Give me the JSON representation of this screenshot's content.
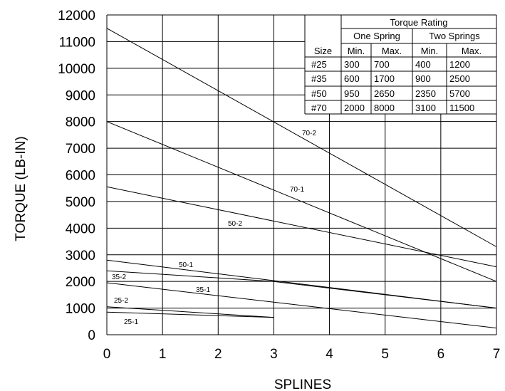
{
  "chart_data": {
    "type": "line",
    "title": "",
    "xlabel": "SPLINES",
    "ylabel": "TORQUE (LB-IN)",
    "xlim": [
      0,
      7
    ],
    "ylim": [
      0,
      12000
    ],
    "grid": true,
    "x_ticks": [
      "0",
      "1",
      "2",
      "3",
      "4",
      "5",
      "6",
      "7"
    ],
    "y_ticks": [
      "0",
      "1000",
      "2000",
      "3000",
      "4000",
      "5000",
      "6000",
      "7000",
      "8000",
      "9000",
      "10000",
      "11000",
      "12000"
    ],
    "series": [
      {
        "name": "70-2",
        "x": [
          0,
          7
        ],
        "y": [
          11500,
          3300
        ]
      },
      {
        "name": "70-1",
        "x": [
          0,
          7
        ],
        "y": [
          8000,
          2000
        ]
      },
      {
        "name": "50-2",
        "x": [
          0,
          7
        ],
        "y": [
          5550,
          2550
        ]
      },
      {
        "name": "50-1",
        "x": [
          0,
          7
        ],
        "y": [
          2800,
          1000
        ]
      },
      {
        "name": "35-2",
        "x": [
          0,
          3,
          7
        ],
        "y": [
          2400,
          2000,
          1000
        ]
      },
      {
        "name": "35-1",
        "x": [
          0,
          7
        ],
        "y": [
          1950,
          250
        ]
      },
      {
        "name": "25-2",
        "x": [
          0,
          3
        ],
        "y": [
          1050,
          650
        ]
      },
      {
        "name": "25-1",
        "x": [
          0,
          3
        ],
        "y": [
          850,
          650
        ]
      }
    ],
    "table": {
      "title": "Torque Rating",
      "group_headers": [
        "One Spring",
        "Two Springs"
      ],
      "columns": [
        "Size",
        "Min.",
        "Max.",
        "Min.",
        "Max."
      ],
      "rows": [
        [
          "#25",
          "300",
          "700",
          "400",
          "1200"
        ],
        [
          "#35",
          "600",
          "1700",
          "900",
          "2500"
        ],
        [
          "#50",
          "950",
          "2650",
          "2350",
          "5700"
        ],
        [
          "#70",
          "2000",
          "8000",
          "3100",
          "11500"
        ]
      ]
    }
  }
}
